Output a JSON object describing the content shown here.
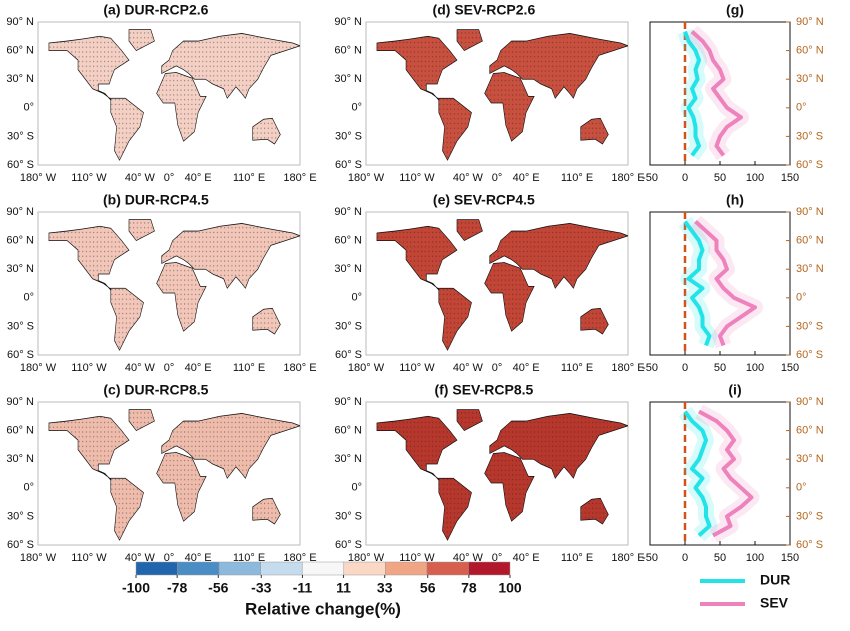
{
  "rows": [
    {
      "maps": [
        {
          "title": "(a) DUR-RCP2.6",
          "fill": "#f4cfc3"
        },
        {
          "title": "(d) SEV-RCP2.6",
          "fill": "#c9503f"
        }
      ],
      "profile": {
        "title": "(g)",
        "series": [
          {
            "name": "DUR",
            "color": "#22e3e8",
            "values": [
              0,
              5,
              15,
              20,
              15,
              18,
              10,
              15,
              5,
              12,
              15,
              15,
              20,
              10
            ]
          },
          {
            "name": "SEV",
            "color": "#ee82bd",
            "values": [
              10,
              25,
              35,
              40,
              50,
              55,
              40,
              50,
              60,
              80,
              60,
              50,
              45,
              55
            ]
          }
        ]
      }
    },
    {
      "maps": [
        {
          "title": "(b) DUR-RCP4.5",
          "fill": "#f2c6b8"
        },
        {
          "title": "(e) SEV-RCP4.5",
          "fill": "#c24536"
        }
      ],
      "profile": {
        "title": "(h)",
        "series": [
          {
            "name": "DUR",
            "color": "#22e3e8",
            "values": [
              0,
              10,
              20,
              25,
              20,
              20,
              5,
              25,
              10,
              20,
              25,
              25,
              35,
              30
            ]
          },
          {
            "name": "SEV",
            "color": "#ee82bd",
            "values": [
              15,
              30,
              45,
              45,
              55,
              60,
              45,
              55,
              70,
              100,
              80,
              60,
              50,
              55
            ]
          }
        ]
      }
    },
    {
      "maps": [
        {
          "title": "(c) DUR-RCP8.5",
          "fill": "#efbcac"
        },
        {
          "title": "(f) SEV-RCP8.5",
          "fill": "#b8372c"
        }
      ],
      "profile": {
        "title": "(i)",
        "series": [
          {
            "name": "DUR",
            "color": "#22e3e8",
            "values": [
              0,
              10,
              25,
              30,
              25,
              20,
              10,
              25,
              15,
              25,
              30,
              30,
              35,
              20
            ]
          },
          {
            "name": "SEV",
            "color": "#ee82bd",
            "values": [
              20,
              45,
              60,
              70,
              60,
              70,
              55,
              65,
              80,
              95,
              80,
              60,
              65,
              40
            ]
          }
        ]
      }
    }
  ],
  "latitudes": [
    80,
    70,
    60,
    50,
    40,
    30,
    20,
    10,
    0,
    -10,
    -20,
    -30,
    -40,
    -50
  ],
  "map_axes": {
    "xlim": [
      -180,
      180
    ],
    "ylim": [
      -60,
      90
    ],
    "xticks": [
      {
        "value": -180,
        "label": "180° W"
      },
      {
        "value": -110,
        "label": "110° W"
      },
      {
        "value": -40,
        "label": "40° W"
      },
      {
        "value": 0,
        "label": "0°"
      },
      {
        "value": 40,
        "label": "40° E"
      },
      {
        "value": 110,
        "label": "110° E"
      },
      {
        "value": 180,
        "label": "180° E"
      }
    ],
    "yticks": [
      {
        "value": 90,
        "label": "90° N"
      },
      {
        "value": 60,
        "label": "60° N"
      },
      {
        "value": 30,
        "label": "30° N"
      },
      {
        "value": 0,
        "label": "0°"
      },
      {
        "value": -30,
        "label": "30° S"
      },
      {
        "value": -60,
        "label": "60° S"
      }
    ]
  },
  "profile_axes": {
    "xlim": [
      -50,
      150
    ],
    "xticks": [
      -50,
      0,
      50,
      100,
      150
    ],
    "ylim": [
      -60,
      90
    ],
    "yticks": [
      {
        "value": 90,
        "label": "90° N"
      },
      {
        "value": 60,
        "label": "60° N"
      },
      {
        "value": 30,
        "label": "30° N"
      },
      {
        "value": 0,
        "label": "0°"
      },
      {
        "value": -30,
        "label": "30° S"
      },
      {
        "value": -60,
        "label": "60° S"
      }
    ]
  },
  "colorbar": {
    "title": "Relative change(%)",
    "ticks": [
      -100,
      -78,
      -56,
      -33,
      -11,
      11,
      33,
      56,
      78,
      100
    ],
    "colors": [
      "#2166ac",
      "#4a8cc4",
      "#8db9dc",
      "#c5dcee",
      "#f7f7f7",
      "#fbd7c6",
      "#f0a585",
      "#d6604d",
      "#b2182b"
    ]
  }
}
